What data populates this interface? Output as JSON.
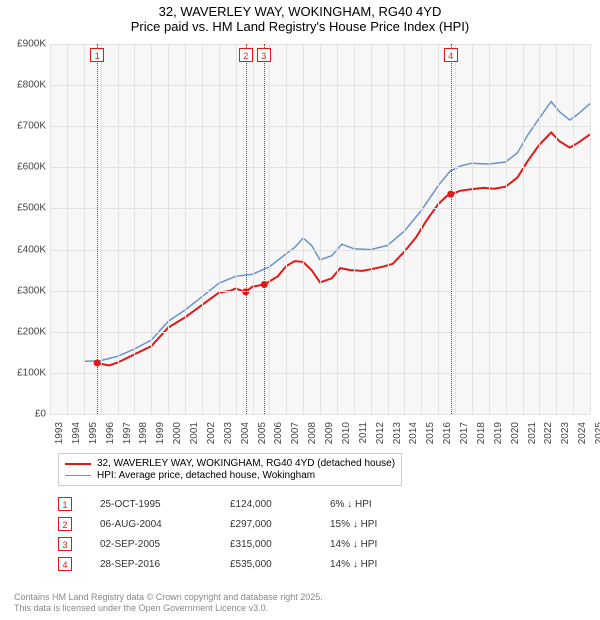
{
  "title": {
    "line1": "32, WAVERLEY WAY, WOKINGHAM, RG40 4YD",
    "line2": "Price paid vs. HM Land Registry's House Price Index (HPI)"
  },
  "chart": {
    "type": "line",
    "background_color": "#f7f7f7",
    "grid_color": "#e2e2e2",
    "axis_label_color": "#444444",
    "axis_label_fontsize": 10,
    "ylim": [
      0,
      900
    ],
    "ytick_step": 100,
    "y_ticks": [
      {
        "value": 0,
        "label": "£0"
      },
      {
        "value": 100,
        "label": "£100K"
      },
      {
        "value": 200,
        "label": "£200K"
      },
      {
        "value": 300,
        "label": "£300K"
      },
      {
        "value": 400,
        "label": "£400K"
      },
      {
        "value": 500,
        "label": "£500K"
      },
      {
        "value": 600,
        "label": "£600K"
      },
      {
        "value": 700,
        "label": "£700K"
      },
      {
        "value": 800,
        "label": "£800K"
      },
      {
        "value": 900,
        "label": "£900K"
      }
    ],
    "xlim": [
      1993,
      2025
    ],
    "x_ticks": [
      1993,
      1994,
      1995,
      1996,
      1997,
      1998,
      1999,
      2000,
      2001,
      2002,
      2003,
      2004,
      2005,
      2006,
      2007,
      2008,
      2009,
      2010,
      2011,
      2012,
      2013,
      2014,
      2015,
      2016,
      2017,
      2018,
      2019,
      2020,
      2021,
      2022,
      2023,
      2024,
      2025
    ],
    "series": [
      {
        "name": "price_paid",
        "label": "32, WAVERLEY WAY, WOKINGHAM, RG40 4YD (detached house)",
        "color": "#e01818",
        "line_width": 2,
        "points": [
          [
            1995.8,
            124
          ],
          [
            1996.5,
            118
          ],
          [
            1997.0,
            125
          ],
          [
            1998.0,
            145
          ],
          [
            1999.0,
            165
          ],
          [
            2000.0,
            210
          ],
          [
            2001.0,
            235
          ],
          [
            2002.0,
            265
          ],
          [
            2003.0,
            295
          ],
          [
            2003.7,
            300
          ],
          [
            2004.0,
            305
          ],
          [
            2004.6,
            297
          ],
          [
            2005.0,
            310
          ],
          [
            2005.7,
            315
          ],
          [
            2006.5,
            335
          ],
          [
            2007.0,
            360
          ],
          [
            2007.5,
            372
          ],
          [
            2008.0,
            370
          ],
          [
            2008.5,
            350
          ],
          [
            2009.0,
            320
          ],
          [
            2009.7,
            330
          ],
          [
            2010.2,
            355
          ],
          [
            2010.8,
            350
          ],
          [
            2011.5,
            348
          ],
          [
            2012.0,
            352
          ],
          [
            2012.7,
            358
          ],
          [
            2013.3,
            365
          ],
          [
            2014.0,
            395
          ],
          [
            2014.7,
            430
          ],
          [
            2015.3,
            470
          ],
          [
            2016.0,
            510
          ],
          [
            2016.5,
            530
          ],
          [
            2016.8,
            535
          ],
          [
            2017.3,
            543
          ],
          [
            2018.0,
            547
          ],
          [
            2018.7,
            550
          ],
          [
            2019.3,
            548
          ],
          [
            2020.0,
            553
          ],
          [
            2020.7,
            575
          ],
          [
            2021.3,
            615
          ],
          [
            2022.0,
            655
          ],
          [
            2022.7,
            685
          ],
          [
            2023.2,
            663
          ],
          [
            2023.8,
            648
          ],
          [
            2024.3,
            660
          ],
          [
            2025.0,
            680
          ]
        ],
        "markers": [
          {
            "x": 1995.8,
            "y": 124
          },
          {
            "x": 2004.6,
            "y": 297
          },
          {
            "x": 2005.7,
            "y": 315
          },
          {
            "x": 2016.75,
            "y": 535
          }
        ]
      },
      {
        "name": "hpi",
        "label": "HPI: Average price, detached house, Wokingham",
        "color": "#6a93c8",
        "line_width": 1.5,
        "points": [
          [
            1995.0,
            128
          ],
          [
            1996.0,
            130
          ],
          [
            1997.0,
            140
          ],
          [
            1998.0,
            158
          ],
          [
            1999.0,
            180
          ],
          [
            2000.0,
            225
          ],
          [
            2001.0,
            253
          ],
          [
            2002.0,
            285
          ],
          [
            2003.0,
            318
          ],
          [
            2004.0,
            335
          ],
          [
            2005.0,
            340
          ],
          [
            2006.0,
            358
          ],
          [
            2007.0,
            390
          ],
          [
            2007.5,
            405
          ],
          [
            2008.0,
            428
          ],
          [
            2008.5,
            410
          ],
          [
            2009.0,
            375
          ],
          [
            2009.7,
            385
          ],
          [
            2010.3,
            413
          ],
          [
            2011.0,
            402
          ],
          [
            2012.0,
            400
          ],
          [
            2013.0,
            410
          ],
          [
            2014.0,
            445
          ],
          [
            2015.0,
            495
          ],
          [
            2016.0,
            555
          ],
          [
            2016.7,
            590
          ],
          [
            2017.3,
            603
          ],
          [
            2018.0,
            610
          ],
          [
            2019.0,
            608
          ],
          [
            2020.0,
            613
          ],
          [
            2020.7,
            635
          ],
          [
            2021.3,
            678
          ],
          [
            2022.0,
            720
          ],
          [
            2022.7,
            760
          ],
          [
            2023.2,
            735
          ],
          [
            2023.8,
            715
          ],
          [
            2024.3,
            730
          ],
          [
            2025.0,
            755
          ]
        ]
      }
    ],
    "event_markers": [
      {
        "num": "1",
        "x": 1995.8
      },
      {
        "num": "2",
        "x": 2004.6
      },
      {
        "num": "3",
        "x": 2005.67
      },
      {
        "num": "4",
        "x": 2016.75
      }
    ]
  },
  "legend": {
    "border_color": "#cccccc",
    "fontsize": 10
  },
  "transactions": [
    {
      "num": "1",
      "date": "25-OCT-1995",
      "price": "£124,000",
      "diff": "6% ↓ HPI"
    },
    {
      "num": "2",
      "date": "06-AUG-2004",
      "price": "£297,000",
      "diff": "15% ↓ HPI"
    },
    {
      "num": "3",
      "date": "02-SEP-2005",
      "price": "£315,000",
      "diff": "14% ↓ HPI"
    },
    {
      "num": "4",
      "date": "28-SEP-2016",
      "price": "£535,000",
      "diff": "14% ↓ HPI"
    }
  ],
  "footer": {
    "line1": "Contains HM Land Registry data © Crown copyright and database right 2025.",
    "line2": "This data is licensed under the Open Government Licence v3.0."
  }
}
